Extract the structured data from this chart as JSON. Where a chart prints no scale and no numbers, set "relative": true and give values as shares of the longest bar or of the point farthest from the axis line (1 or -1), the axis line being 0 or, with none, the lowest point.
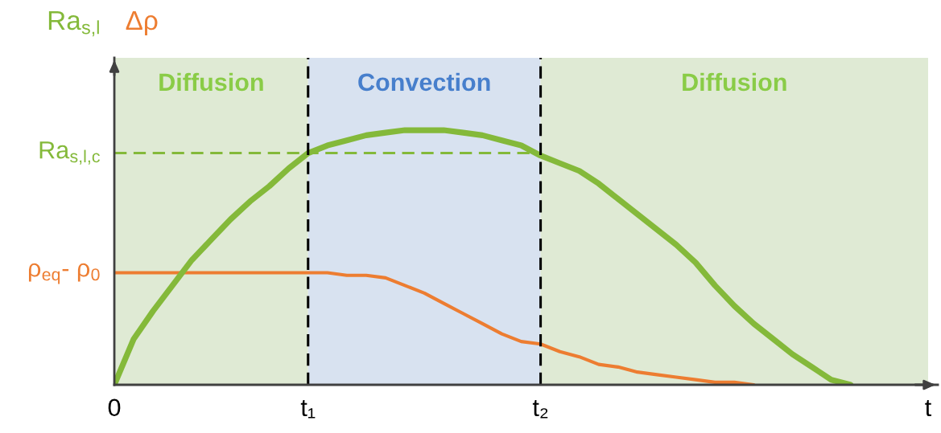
{
  "chart_data": {
    "type": "line",
    "relative": true,
    "tick_labels": "x",
    "categories": [
      "0",
      null,
      null,
      null,
      null,
      null,
      null,
      null,
      null,
      null,
      "t₁",
      null,
      null,
      null,
      null,
      null,
      null,
      null,
      null,
      null,
      null,
      null,
      "t₂",
      null,
      null,
      null,
      null,
      null,
      null,
      null,
      null,
      null,
      null,
      null,
      null,
      null,
      null,
      null,
      null,
      null,
      null,
      null,
      "t"
    ],
    "series": [
      {
        "name": "Ra$_{s,l}$",
        "color": "#84b93a",
        "values": [
          0,
          0.18,
          0.29,
          0.39,
          0.49,
          0.57,
          0.65,
          0.72,
          0.78,
          0.85,
          0.91,
          0.94,
          0.96,
          0.98,
          0.99,
          1.0,
          1.0,
          1.0,
          0.99,
          0.98,
          0.96,
          0.94,
          0.9,
          0.87,
          0.84,
          0.79,
          0.73,
          0.67,
          0.61,
          0.55,
          0.48,
          0.39,
          0.31,
          0.24,
          0.18,
          0.12,
          0.07,
          0.02,
          0,
          null,
          null,
          null,
          null
        ]
      },
      {
        "name": "Δρ",
        "color": "#ed7d31",
        "values": [
          0.44,
          0.44,
          0.44,
          0.44,
          0.44,
          0.44,
          0.44,
          0.44,
          0.44,
          0.44,
          0.44,
          0.44,
          0.43,
          0.43,
          0.42,
          0.39,
          0.36,
          0.32,
          0.28,
          0.24,
          0.2,
          0.17,
          0.16,
          0.13,
          0.11,
          0.08,
          0.07,
          0.05,
          0.04,
          0.03,
          0.02,
          0.01,
          0.01,
          0,
          null,
          null,
          null,
          null,
          null,
          null,
          null,
          null,
          null
        ]
      },
      {
        "color": "#84b93a",
        "line_style": "dashed",
        "values": [
          0.91,
          0.91,
          0.91,
          0.91,
          0.91,
          0.91,
          0.91,
          0.91,
          0.91,
          0.91,
          0.91,
          0.91,
          0.91,
          0.91,
          0.91,
          0.91,
          0.91,
          0.91,
          0.91,
          0.91,
          0.91,
          0.91,
          0.91,
          null,
          null,
          null,
          null,
          null,
          null,
          null,
          null,
          null,
          null,
          null,
          null,
          null,
          null,
          null,
          null,
          null,
          null,
          null,
          null
        ]
      }
    ],
    "ref_lines": [
      {
        "axis": "x",
        "value": "t₁",
        "color": "#000000",
        "line_style": "dashed"
      },
      {
        "axis": "x",
        "value": "t₂",
        "color": "#000000",
        "line_style": "dashed"
      }
    ],
    "bands": [
      {
        "axis": "x",
        "from": "0",
        "to": "t₁",
        "label": "Diffusion",
        "color": "#dfead4"
      },
      {
        "axis": "x",
        "from": "t₁",
        "to": "t₂",
        "label": "Convection",
        "color": "#d8e2f0"
      },
      {
        "axis": "x",
        "from": "t₂",
        "to": "t",
        "label": "Diffusion",
        "color": "#dfead4"
      }
    ],
    "annotations": [
      {
        "text": "Ra$_{s,l,c}$",
        "x": "0",
        "y": 0.91
      },
      {
        "text": "ρ$_{eq}$- ρ$_{0}$",
        "x": "0",
        "y": 0.44
      }
    ]
  }
}
